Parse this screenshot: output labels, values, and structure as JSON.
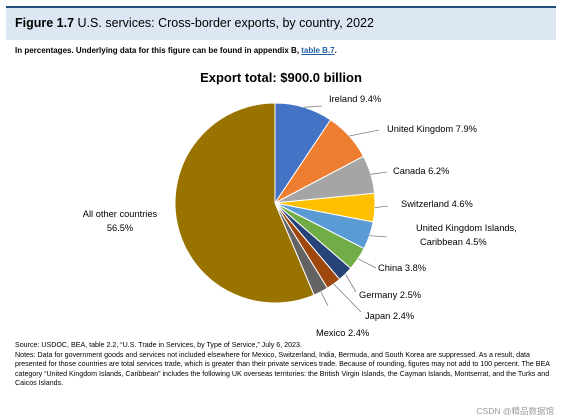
{
  "figure": {
    "number": "Figure 1.7",
    "title": "U.S. services: Cross-border exports, by country, 2022",
    "subtitle_text": "In percentages. Underlying data for this figure can be found in appendix B, ",
    "subtitle_link": "table B.7",
    "subtitle_end": "."
  },
  "chart_data": {
    "type": "pie",
    "title": "Export total: $900.0 billion",
    "unit": "%",
    "slices": [
      {
        "label": "Ireland",
        "value": 9.4,
        "display": "9.4%",
        "color": "#4472c4"
      },
      {
        "label": "United Kingdom",
        "value": 7.9,
        "display": "7.9%",
        "color": "#ed7d31"
      },
      {
        "label": "Canada",
        "value": 6.2,
        "display": "6.2%",
        "color": "#a5a5a5"
      },
      {
        "label": "Switzerland",
        "value": 4.6,
        "display": "4.6%",
        "color": "#ffc000"
      },
      {
        "label": "United Kingdom Islands, Caribbean",
        "value": 4.5,
        "display": "4.5%",
        "color": "#5b9bd5"
      },
      {
        "label": "China",
        "value": 3.8,
        "display": "3.8%",
        "color": "#70ad47"
      },
      {
        "label": "Germany",
        "value": 2.5,
        "display": "2.5%",
        "color": "#264478"
      },
      {
        "label": "Japan",
        "value": 2.4,
        "display": "2.4%",
        "color": "#9e480e"
      },
      {
        "label": "Mexico",
        "value": 2.4,
        "display": "2.4%",
        "color": "#636363"
      },
      {
        "label": "All other countries",
        "value": 56.5,
        "display": "56.5%",
        "color": "#997300"
      }
    ]
  },
  "notes": {
    "source": "Source: USDOC, BEA, table 2.2, “U.S. Trade in Services, by Type of Service,” July 6, 2023.",
    "notes": "Notes: Data for government goods and services not included elsewhere for Mexico, Switzerland, India, Bermuda, and South Korea are suppressed. As a result, data presented for those countries are total services trade, which is greater than their private services trade. Because of rounding, figures may not add to 100 percent. The BEA category “United Kingdom Islands, Caribbean” includes the following UK overseas territories: the British Virgin Islands, the Cayman Islands, Montserrat, and the Turks and Caicos Islands."
  },
  "watermark": "CSDN @精品数据馆"
}
